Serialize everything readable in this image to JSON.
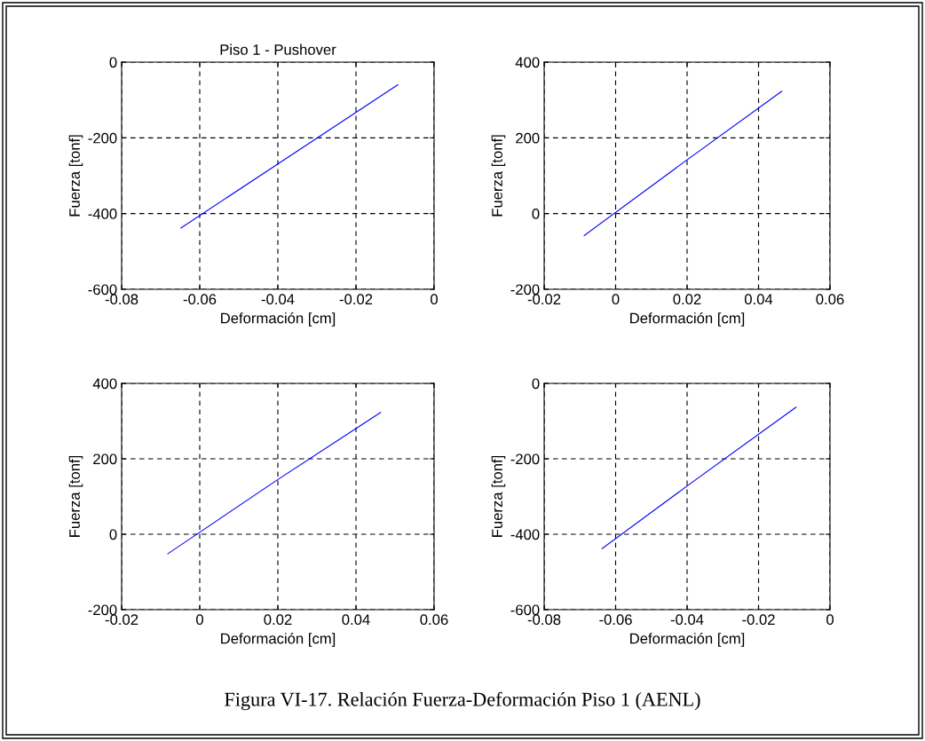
{
  "chart_data": [
    {
      "type": "line",
      "title": "Piso 1 - Pushover",
      "xlabel": "Deformación [cm]",
      "ylabel": "Fuerza [tonf]",
      "x": [
        -0.0648,
        -0.04,
        -0.0093
      ],
      "series": [
        {
          "color": "#0000ff",
          "values": [
            -438,
            -269,
            -60
          ]
        }
      ],
      "xlim": [
        -0.08,
        0
      ],
      "xticks": [
        -0.08,
        -0.06,
        -0.04,
        -0.02,
        0
      ],
      "ylim": [
        -600,
        0
      ],
      "yticks": [
        -600,
        -400,
        -200,
        0
      ],
      "grid": true,
      "line_style": "solid",
      "annotations": [
        "Figura VI-17. Relación Fuerza-Deformación Piso 1 (AENL)"
      ]
    },
    {
      "type": "line",
      "xlabel": "Deformación [cm]",
      "ylabel": "Fuerza [tonf]",
      "x": [
        -0.0088,
        0.02,
        0.0465
      ],
      "series": [
        {
          "color": "#0000ff",
          "values": [
            -58,
            142,
            323
          ]
        }
      ],
      "xlim": [
        -0.02,
        0.06
      ],
      "xticks": [
        -0.02,
        0,
        0.02,
        0.04,
        0.06
      ],
      "ylim": [
        -200,
        400
      ],
      "yticks": [
        -200,
        0,
        200,
        400
      ],
      "grid": true,
      "line_style": "solid"
    },
    {
      "type": "line",
      "xlabel": "Deformación [cm]",
      "ylabel": "Fuerza [tonf]",
      "x": [
        -0.0082,
        0.02,
        0.0463
      ],
      "series": [
        {
          "color": "#0000ff",
          "values": [
            -52,
            145,
            323
          ]
        }
      ],
      "xlim": [
        -0.02,
        0.06
      ],
      "xticks": [
        -0.02,
        0,
        0.02,
        0.04,
        0.06
      ],
      "ylim": [
        -200,
        400
      ],
      "yticks": [
        -200,
        0,
        200,
        400
      ],
      "grid": true,
      "line_style": "solid"
    },
    {
      "type": "line",
      "xlabel": "Deformación [cm]",
      "ylabel": "Fuerza [tonf]",
      "x": [
        -0.0638,
        -0.04,
        -0.0095
      ],
      "series": [
        {
          "color": "#0000ff",
          "values": [
            -438,
            -272,
            -63
          ]
        }
      ],
      "xlim": [
        -0.08,
        0
      ],
      "xticks": [
        -0.08,
        -0.06,
        -0.04,
        -0.02,
        0
      ],
      "ylim": [
        -600,
        0
      ],
      "yticks": [
        -600,
        -400,
        -200,
        0
      ],
      "grid": true,
      "line_style": "solid"
    }
  ]
}
